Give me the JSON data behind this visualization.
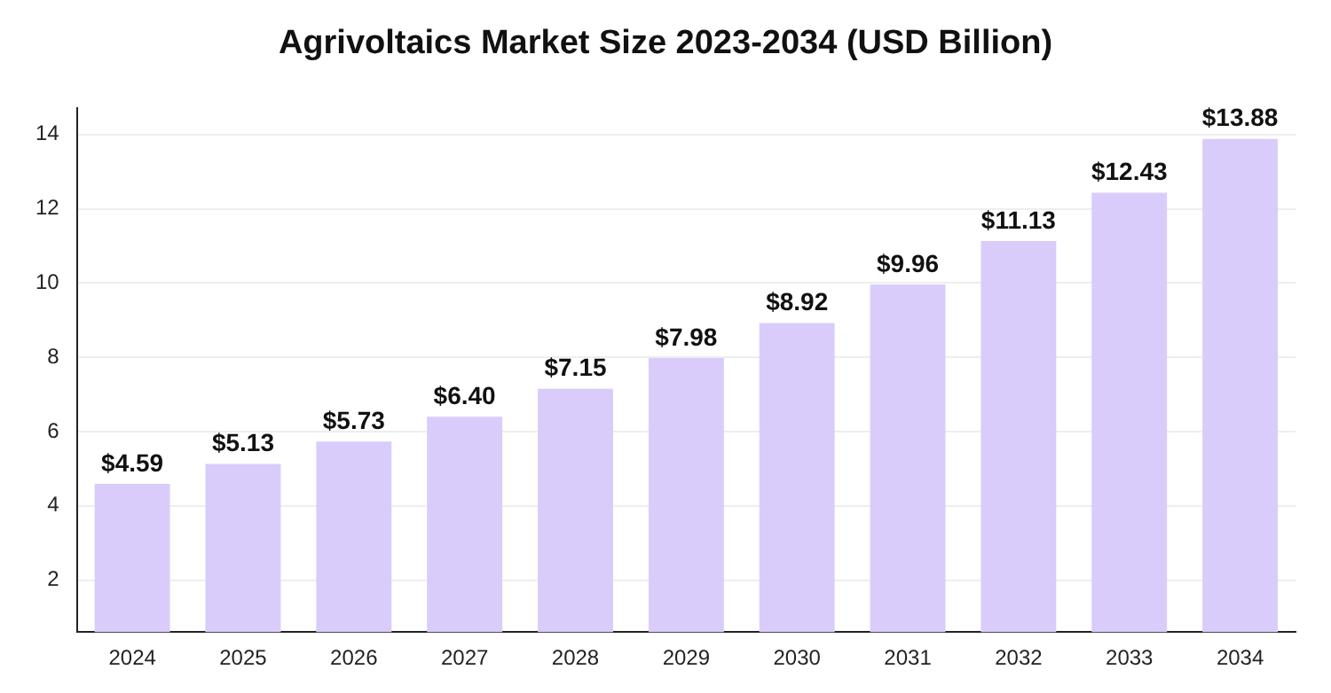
{
  "chart_data": {
    "type": "bar",
    "title": "Agrivoltaics Market Size 2023-2034 (USD Billion)",
    "categories": [
      "2024",
      "2025",
      "2026",
      "2027",
      "2028",
      "2029",
      "2030",
      "2031",
      "2032",
      "2033",
      "2034"
    ],
    "values": [
      4.59,
      5.13,
      5.73,
      6.4,
      7.15,
      7.98,
      8.92,
      9.96,
      11.13,
      12.43,
      13.88
    ],
    "value_labels": [
      "$4.59",
      "$5.13",
      "$5.73",
      "$6.40",
      "$7.15",
      "$7.98",
      "$8.92",
      "$9.96",
      "$11.13",
      "$12.43",
      "$13.88"
    ],
    "color": "#d9ccfb",
    "ylim": [
      0.6,
      14.7
    ],
    "yticks": [
      2,
      4,
      6,
      8,
      10,
      12,
      14
    ],
    "grid": "y"
  }
}
